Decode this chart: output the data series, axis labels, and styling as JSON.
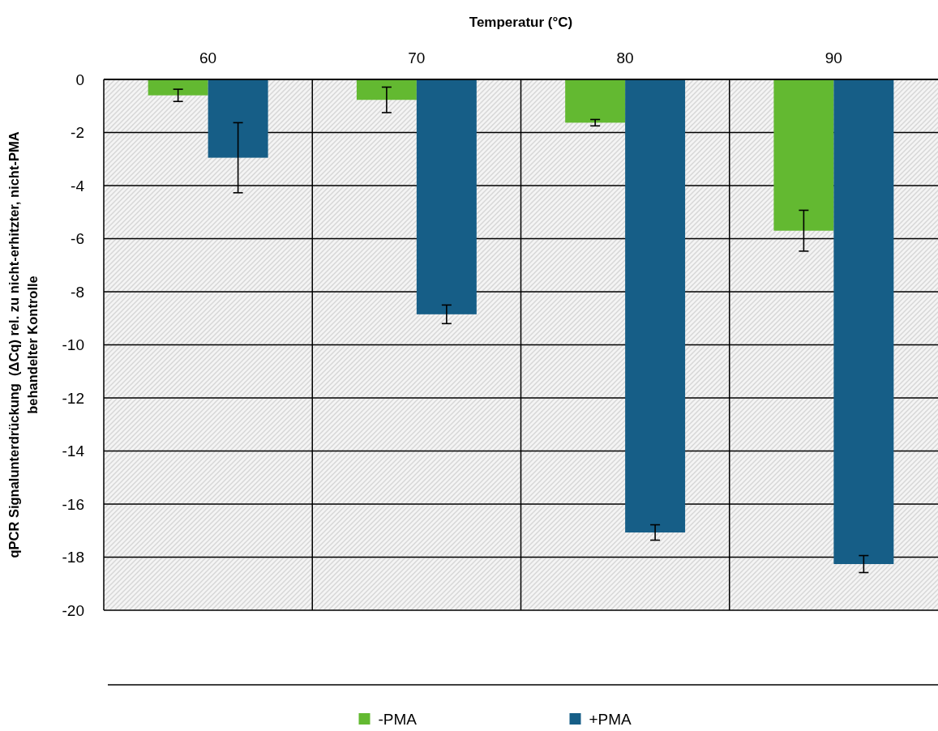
{
  "chart_data": {
    "type": "bar",
    "xlabel": "Temperatur (°C)",
    "ylabel": "qPCR Signalunterdrückung  (ΔCq) rel. zu nicht-erhitzter, nicht-PMA behandelter Kontrolle",
    "categories": [
      "60",
      "70",
      "80",
      "90"
    ],
    "series": [
      {
        "name": "-PMA",
        "color": "#63b931",
        "values": [
          -0.6,
          -0.77,
          -1.63,
          -5.7
        ],
        "errors": [
          0.23,
          0.48,
          0.12,
          0.77
        ]
      },
      {
        "name": "+PMA",
        "color": "#165e87",
        "values": [
          -2.95,
          -8.85,
          -17.07,
          -18.26
        ],
        "errors": [
          1.32,
          0.35,
          0.29,
          0.32
        ]
      }
    ],
    "ylim": [
      -20,
      0
    ],
    "yticks": [
      0,
      -2,
      -4,
      -6,
      -8,
      -10,
      -12,
      -14,
      -16,
      -18,
      -20
    ],
    "grid": true,
    "legend": "bottom"
  }
}
